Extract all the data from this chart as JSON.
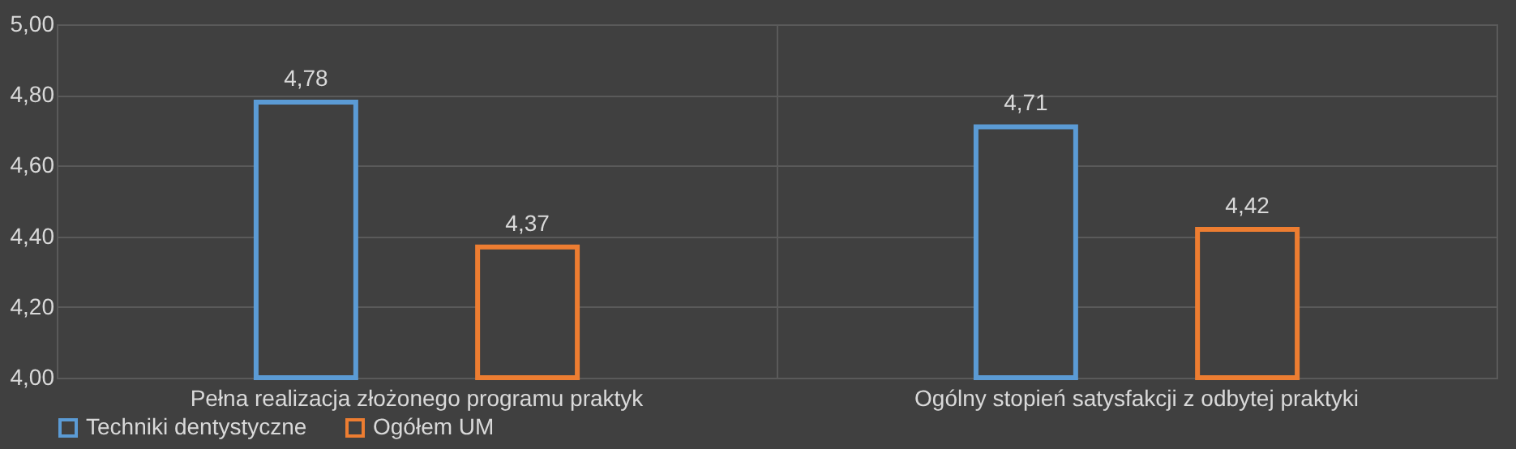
{
  "chart_data": {
    "type": "bar",
    "categories": [
      "Pełna realizacja złożonego programu praktyk",
      "Ogólny stopień satysfakcji z odbytej praktyki"
    ],
    "series": [
      {
        "name": "Techniki dentystyczne",
        "color": "#5b9bd5",
        "values": [
          4.78,
          4.71
        ],
        "value_labels": [
          "4,78",
          "4,71"
        ]
      },
      {
        "name": "Ogółem UM",
        "color": "#ed7d31",
        "values": [
          4.37,
          4.42
        ],
        "value_labels": [
          "4,37",
          "4,42"
        ]
      }
    ],
    "ylim": [
      4.0,
      5.0
    ],
    "yticks": [
      {
        "value": 4.0,
        "label": "4,00"
      },
      {
        "value": 4.2,
        "label": "4,20"
      },
      {
        "value": 4.4,
        "label": "4,40"
      },
      {
        "value": 4.6,
        "label": "4,60"
      },
      {
        "value": 4.8,
        "label": "4,80"
      },
      {
        "value": 5.0,
        "label": "5,00"
      }
    ],
    "grid": true,
    "legend": "bottom"
  }
}
